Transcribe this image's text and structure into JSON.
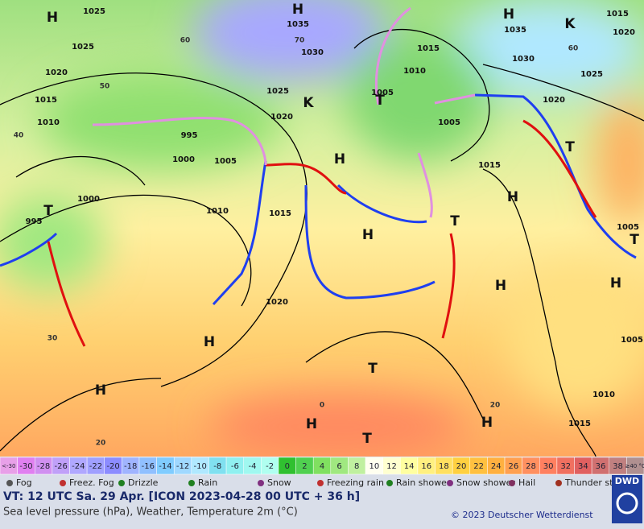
{
  "map": {
    "map_labels": [
      "H",
      "1025",
      "H",
      "1035",
      "1030",
      "1025",
      "1020",
      "1015",
      "1010",
      "1025",
      "1020",
      "1015",
      "1010",
      "1005",
      "1005",
      "1015",
      "H",
      "1035",
      "1030",
      "1025",
      "1020",
      "1015",
      "1020",
      "995",
      "1000",
      "1005",
      "1010",
      "1015",
      "1000",
      "995",
      "1020",
      "1010",
      "1015",
      "1005",
      "1005",
      "H",
      "H",
      "H",
      "H",
      "H",
      "H",
      "H",
      "H",
      "H",
      "T",
      "T",
      "T",
      "T",
      "T",
      "T",
      "T",
      "K",
      "K"
    ],
    "temp_labels": [
      "60",
      "50",
      "40",
      "30",
      "20",
      "0",
      "20",
      "60",
      "70"
    ]
  },
  "legend": {
    "scale": [
      "<-30",
      "-30",
      "-28",
      "-26",
      "-24",
      "-22",
      "-20",
      "-18",
      "-16",
      "-14",
      "-12",
      "-10",
      "-8",
      "-6",
      "-4",
      "-2",
      "0",
      "2",
      "4",
      "6",
      "8",
      "10",
      "12",
      "14",
      "16",
      "18",
      "20",
      "22",
      "24",
      "26",
      "28",
      "30",
      "32",
      "34",
      "36",
      "38",
      "≥40 °C"
    ],
    "colors": [
      "#e8a0e8",
      "#e080f0",
      "#d090f0",
      "#c0a0f8",
      "#b0a8ff",
      "#a0a0ff",
      "#8c8cff",
      "#a0b4ff",
      "#90c0ff",
      "#80ccff",
      "#a0d8ff",
      "#b0e8ff",
      "#80e0f0",
      "#90f0f0",
      "#a0f8f0",
      "#b0fff0",
      "#30c030",
      "#50d050",
      "#80e060",
      "#a0e880",
      "#c0f0a0",
      "#fffff0",
      "#ffffd0",
      "#ffffa0",
      "#fff080",
      "#ffe060",
      "#ffd040",
      "#ffc040",
      "#ffb040",
      "#ffa050",
      "#ff9060",
      "#ff8060",
      "#f07060",
      "#e06060",
      "#d07070",
      "#c08080",
      "#b09090"
    ],
    "weather": [
      "Fog",
      "Freez. Fog",
      "Drizzle",
      "Rain",
      "Snow",
      "Freezing rain",
      "Rain shower",
      "Snow shower",
      "Hail",
      "Thunder storm"
    ]
  },
  "footer": {
    "valid_time": "VT: 12 UTC Sa.  29 Apr. [ICON 2023-04-28  00 UTC + 36 h]",
    "description": "Sea level pressure (hPa), Weather, Temperature 2m (°C)",
    "copyright": "© 2023 Deutscher Wetterdienst",
    "logo": "DWD"
  }
}
